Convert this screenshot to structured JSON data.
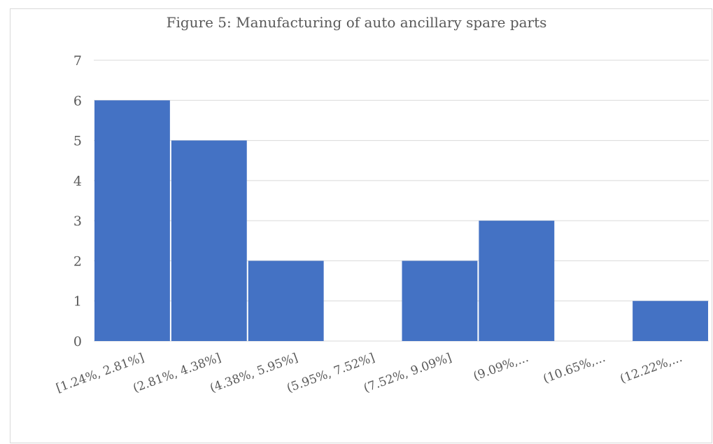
{
  "chart_data": {
    "type": "bar",
    "title": "Figure 5: Manufacturing of auto ancillary spare parts",
    "xlabel": "",
    "ylabel": "",
    "categories": [
      "[1.24%, 2.81%]",
      "(2.81%, 4.38%]",
      "(4.38%, 5.95%]",
      "(5.95%, 7.52%]",
      "(7.52%, 9.09%]",
      "(9.09%,...",
      "(10.65%,...",
      "(12.22%,..."
    ],
    "values": [
      6,
      5,
      2,
      0,
      2,
      3,
      0,
      1
    ],
    "ylim": [
      0,
      7
    ],
    "yticks": [
      0,
      1,
      2,
      3,
      4,
      5,
      6,
      7
    ],
    "grid": true,
    "legend": "none",
    "colors": {
      "bar": "#4472C4",
      "grid": "#d9d9d9",
      "text": "#595959"
    }
  }
}
